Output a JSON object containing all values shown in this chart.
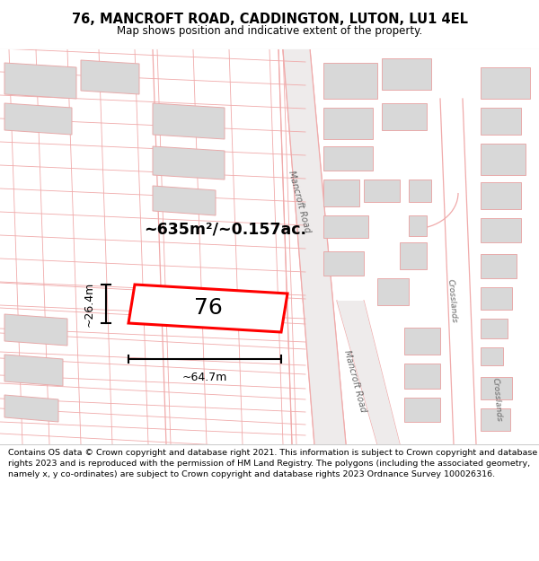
{
  "title_line1": "76, MANCROFT ROAD, CADDINGTON, LUTON, LU1 4EL",
  "title_line2": "Map shows position and indicative extent of the property.",
  "footer_text": "Contains OS data © Crown copyright and database right 2021. This information is subject to Crown copyright and database rights 2023 and is reproduced with the permission of HM Land Registry. The polygons (including the associated geometry, namely x, y co-ordinates) are subject to Crown copyright and database rights 2023 Ordnance Survey 100026316.",
  "area_label": "~635m²/~0.157ac.",
  "property_label": "76",
  "width_label": "~64.7m",
  "height_label": "~26.4m",
  "road_color": "#f0aaaa",
  "building_color": "#d8d8d8",
  "building_outline": "#e8aaaa",
  "plot_color": "#ff0000",
  "map_bg": "#faf8f8",
  "road_bg": "#f0ecec"
}
